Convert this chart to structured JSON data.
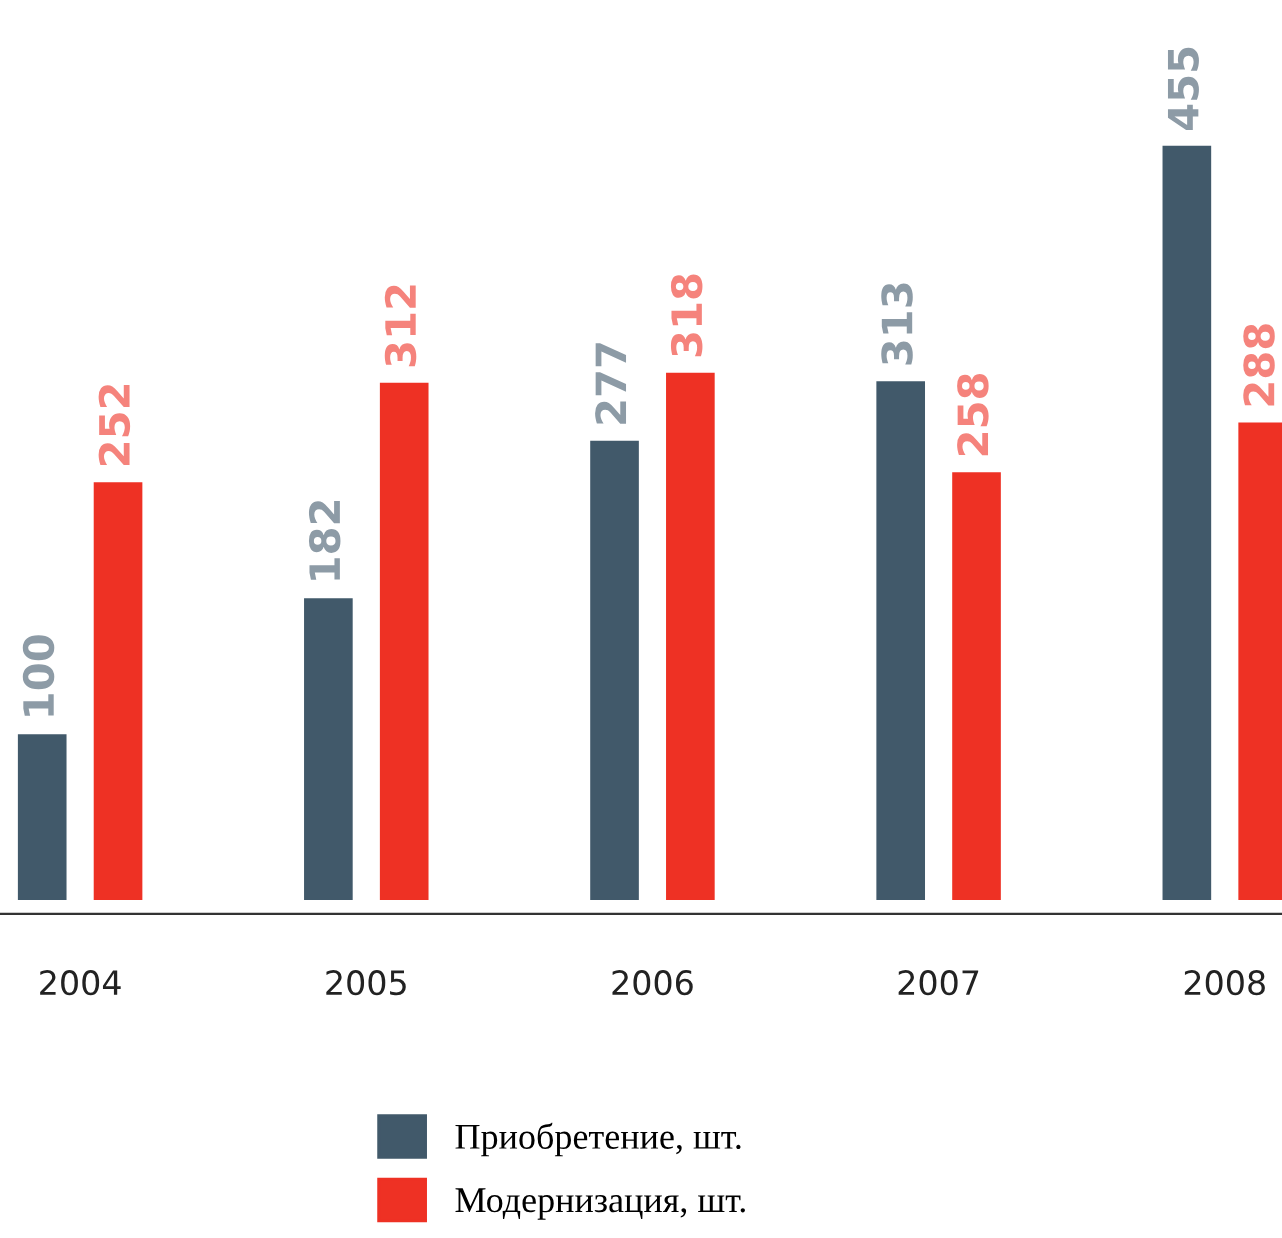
{
  "chart_data": {
    "type": "bar",
    "categories": [
      "2004",
      "2005",
      "2006",
      "2007",
      "2008"
    ],
    "series": [
      {
        "name": "Приобретение, шт.",
        "color": "#41596a",
        "values": [
          100,
          182,
          277,
          313,
          455
        ]
      },
      {
        "name": "Модернизация, шт.",
        "color": "#ee3124",
        "values": [
          252,
          312,
          318,
          258,
          288
        ]
      }
    ],
    "data_labels": true,
    "legend": "bottom",
    "grid": false
  }
}
